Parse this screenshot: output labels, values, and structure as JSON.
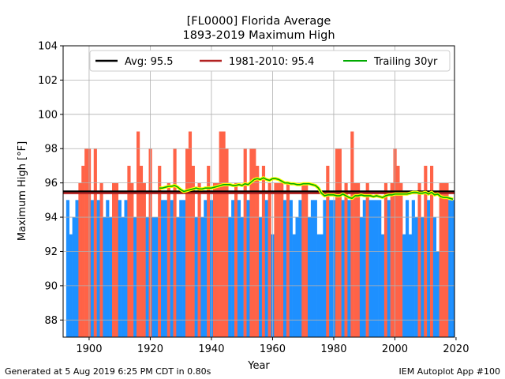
{
  "chart_data": {
    "type": "bar",
    "title": "[FL0000] Florida Average",
    "subtitle": "1893-2019 Maximum High",
    "xlabel": "Year",
    "ylabel": "Maximum High [°F]",
    "xlim": [
      1891.5,
      2019.5
    ],
    "ylim": [
      87,
      104
    ],
    "xticks": [
      1900,
      1920,
      1940,
      1960,
      1980,
      2000,
      2020
    ],
    "yticks": [
      88,
      90,
      92,
      94,
      96,
      98,
      100,
      102,
      104
    ],
    "grid": true,
    "legend_position": "top",
    "above_color": "#ff6347",
    "below_color": "#1e90ff",
    "years": [
      1893,
      1894,
      1895,
      1896,
      1897,
      1898,
      1899,
      1900,
      1901,
      1902,
      1903,
      1904,
      1905,
      1906,
      1907,
      1908,
      1909,
      1910,
      1911,
      1912,
      1913,
      1914,
      1915,
      1916,
      1917,
      1918,
      1919,
      1920,
      1921,
      1922,
      1923,
      1924,
      1925,
      1926,
      1927,
      1928,
      1929,
      1930,
      1931,
      1932,
      1933,
      1934,
      1935,
      1936,
      1937,
      1938,
      1939,
      1940,
      1941,
      1942,
      1943,
      1944,
      1945,
      1946,
      1947,
      1948,
      1949,
      1950,
      1951,
      1952,
      1953,
      1954,
      1955,
      1956,
      1957,
      1958,
      1959,
      1960,
      1961,
      1962,
      1963,
      1964,
      1965,
      1966,
      1967,
      1968,
      1969,
      1970,
      1971,
      1972,
      1973,
      1974,
      1975,
      1976,
      1977,
      1978,
      1979,
      1980,
      1981,
      1982,
      1983,
      1984,
      1985,
      1986,
      1987,
      1988,
      1989,
      1990,
      1991,
      1992,
      1993,
      1994,
      1995,
      1996,
      1997,
      1998,
      1999,
      2000,
      2001,
      2002,
      2003,
      2004,
      2005,
      2006,
      2007,
      2008,
      2009,
      2010,
      2011,
      2012,
      2013,
      2014,
      2015,
      2016,
      2017,
      2018,
      2019
    ],
    "values": [
      95,
      93,
      94,
      95,
      96,
      97,
      98,
      98,
      95,
      98,
      95,
      96,
      94,
      95,
      94,
      96,
      96,
      95,
      94,
      95,
      97,
      96,
      94,
      99,
      97,
      96,
      94,
      98,
      94,
      94,
      97,
      95,
      95,
      96,
      95,
      98,
      94,
      95,
      95,
      98,
      99,
      97,
      94,
      96,
      94,
      95,
      97,
      95,
      96,
      96,
      99,
      99,
      98,
      94,
      95,
      96,
      95,
      94,
      98,
      95,
      98,
      98,
      97,
      94,
      97,
      95,
      96,
      93,
      96,
      96,
      96,
      95,
      96,
      95,
      93,
      94,
      95,
      96,
      96,
      94,
      95,
      95,
      93,
      93,
      95,
      97,
      95,
      95,
      98,
      98,
      95,
      96,
      95,
      99,
      96,
      96,
      94,
      95,
      96,
      95,
      95,
      95,
      95,
      93,
      96,
      95,
      96,
      98,
      97,
      96,
      93,
      95,
      93,
      95,
      94,
      96,
      94,
      97,
      95,
      97,
      94,
      92,
      96,
      96,
      96,
      95,
      95
    ],
    "trailing_30yr_years": [
      1923,
      1924,
      1925,
      1926,
      1927,
      1928,
      1929,
      1930,
      1931,
      1932,
      1933,
      1934,
      1935,
      1936,
      1937,
      1938,
      1939,
      1940,
      1941,
      1942,
      1943,
      1944,
      1945,
      1946,
      1947,
      1948,
      1949,
      1950,
      1951,
      1952,
      1953,
      1954,
      1955,
      1956,
      1957,
      1958,
      1959,
      1960,
      1961,
      1962,
      1963,
      1964,
      1965,
      1966,
      1967,
      1968,
      1969,
      1970,
      1971,
      1972,
      1973,
      1974,
      1975,
      1976,
      1977,
      1978,
      1979,
      1980,
      1981,
      1982,
      1983,
      1984,
      1985,
      1986,
      1987,
      1988,
      1989,
      1990,
      1991,
      1992,
      1993,
      1994,
      1995,
      1996,
      1997,
      1998,
      1999,
      2000,
      2001,
      2002,
      2003,
      2004,
      2005,
      2006,
      2007,
      2008,
      2009,
      2010,
      2011,
      2012,
      2013,
      2014,
      2015,
      2016,
      2017,
      2018,
      2019
    ],
    "trailing_30yr_values": [
      95.7,
      95.7,
      95.75,
      95.8,
      95.8,
      95.85,
      95.75,
      95.6,
      95.5,
      95.55,
      95.6,
      95.65,
      95.7,
      95.65,
      95.65,
      95.7,
      95.7,
      95.7,
      95.75,
      95.8,
      95.85,
      95.9,
      95.9,
      95.9,
      95.85,
      95.85,
      95.9,
      95.85,
      95.95,
      95.9,
      96.05,
      96.2,
      96.25,
      96.2,
      96.3,
      96.2,
      96.15,
      96.25,
      96.25,
      96.2,
      96.1,
      96.0,
      96.0,
      95.95,
      95.95,
      95.9,
      95.9,
      95.95,
      95.95,
      95.95,
      95.9,
      95.85,
      95.7,
      95.4,
      95.25,
      95.3,
      95.3,
      95.3,
      95.25,
      95.25,
      95.35,
      95.25,
      95.15,
      95.1,
      95.25,
      95.25,
      95.3,
      95.25,
      95.25,
      95.25,
      95.2,
      95.25,
      95.2,
      95.15,
      95.25,
      95.3,
      95.3,
      95.35,
      95.35,
      95.35,
      95.35,
      95.35,
      95.4,
      95.45,
      95.45,
      95.4,
      95.4,
      95.45,
      95.35,
      95.45,
      95.3,
      95.35,
      95.2,
      95.15,
      95.15,
      95.1,
      95.05
    ],
    "series": [
      {
        "name": "Avg: 95.5",
        "value": 95.5,
        "color": "#000000"
      },
      {
        "name": "1981-2010: 95.4",
        "value": 95.4,
        "color": "#b22222"
      },
      {
        "name": "Trailing 30yr",
        "color": "#00aa00",
        "outline": "#ffff00"
      }
    ]
  },
  "footer": {
    "left": "Generated at 5 Aug 2019 6:25 PM CDT in 0.80s",
    "right": "IEM Autoplot App #100"
  }
}
